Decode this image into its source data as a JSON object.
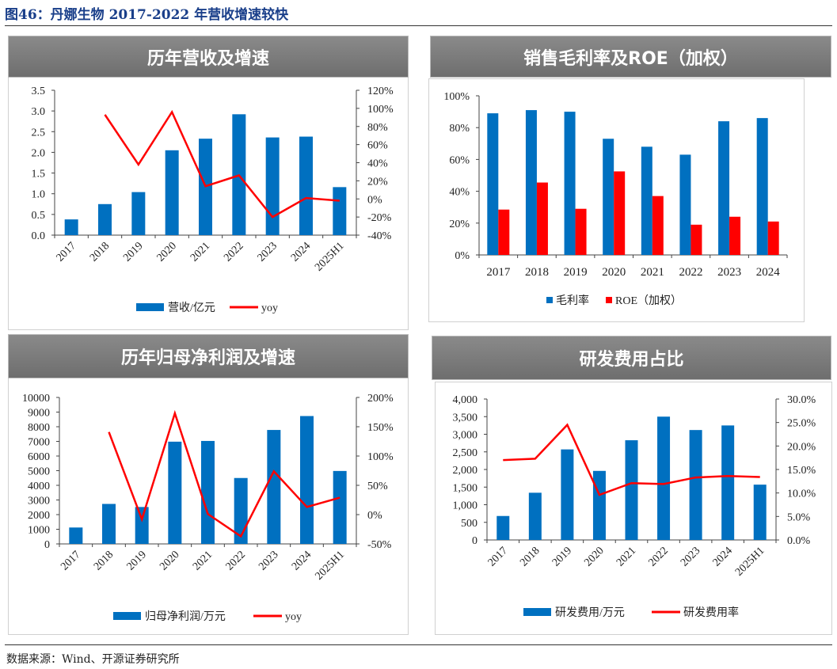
{
  "figure_title": "图46：丹娜生物 2017-2022 年营收增速较快",
  "source": "数据来源：Wind、开源证券研究所",
  "colors": {
    "bar": "#0070c0",
    "line": "#ff0000",
    "header": "#7f7f7f"
  },
  "panels": [
    {
      "title": "历年营收及增速"
    },
    {
      "title": "销售毛利率及ROE（加权）"
    },
    {
      "title": "历年归母净利润及增速"
    },
    {
      "title": "研发费用占比"
    }
  ],
  "chart_data": [
    {
      "type": "bar+line",
      "categories": [
        "2017",
        "2018",
        "2019",
        "2020",
        "2021",
        "2022",
        "2023",
        "2024",
        "2025H1"
      ],
      "series": [
        {
          "name": "营收/亿元",
          "type": "bar",
          "axis": "left",
          "values": [
            0.38,
            0.75,
            1.04,
            2.05,
            2.33,
            2.92,
            2.36,
            2.38,
            1.16
          ]
        },
        {
          "name": "yoy",
          "type": "line",
          "axis": "right",
          "values": [
            null,
            93,
            38,
            96,
            14,
            26,
            -20,
            1,
            -2
          ]
        }
      ],
      "ylim": [
        0,
        3.5
      ],
      "yticks": [
        "0.0",
        "0.5",
        "1.0",
        "1.5",
        "2.0",
        "2.5",
        "3.0",
        "3.5"
      ],
      "y2lim": [
        -40,
        120
      ],
      "y2ticks": [
        "-40%",
        "-20%",
        "0%",
        "20%",
        "40%",
        "60%",
        "80%",
        "100%",
        "120%"
      ],
      "legend": "bottom"
    },
    {
      "type": "bar",
      "categories": [
        "2017",
        "2018",
        "2019",
        "2020",
        "2021",
        "2022",
        "2023",
        "2024"
      ],
      "series": [
        {
          "name": "毛利率",
          "type": "bar",
          "values": [
            89,
            91,
            90,
            73,
            68,
            63,
            84,
            86
          ]
        },
        {
          "name": "ROE（加权）",
          "type": "bar",
          "values": [
            28.5,
            45.5,
            29,
            52.5,
            37,
            19,
            24,
            21
          ]
        }
      ],
      "ylim": [
        0,
        100
      ],
      "yticks": [
        "0%",
        "20%",
        "40%",
        "60%",
        "80%",
        "100%"
      ],
      "legend": "bottom"
    },
    {
      "type": "bar+line",
      "categories": [
        "2017",
        "2018",
        "2019",
        "2020",
        "2021",
        "2022",
        "2023",
        "2024",
        "2025H1"
      ],
      "series": [
        {
          "name": "归母净利润/万元",
          "type": "bar",
          "axis": "left",
          "values": [
            1120,
            2730,
            2520,
            6980,
            7030,
            4500,
            7780,
            8730,
            4980
          ]
        },
        {
          "name": "yoy",
          "type": "line",
          "axis": "right",
          "values": [
            null,
            141,
            -8,
            173,
            1,
            -37,
            74,
            13,
            29
          ]
        }
      ],
      "ylim": [
        0,
        10000
      ],
      "yticks": [
        "0",
        "1000",
        "2000",
        "3000",
        "4000",
        "5000",
        "6000",
        "7000",
        "8000",
        "9000",
        "10000"
      ],
      "y2lim": [
        -50,
        200
      ],
      "y2ticks": [
        "-50%",
        "0%",
        "50%",
        "100%",
        "150%",
        "200%"
      ],
      "legend": "bottom"
    },
    {
      "type": "bar+line",
      "categories": [
        "2017",
        "2018",
        "2019",
        "2020",
        "2021",
        "2022",
        "2023",
        "2024",
        "2025H1"
      ],
      "series": [
        {
          "name": "研发费用/万元",
          "type": "bar",
          "axis": "left",
          "values": [
            680,
            1340,
            2570,
            1960,
            2830,
            3500,
            3120,
            3250,
            1570
          ]
        },
        {
          "name": "研发费用率",
          "type": "line",
          "axis": "right",
          "values": [
            17.0,
            17.3,
            24.5,
            9.6,
            12.1,
            11.9,
            13.3,
            13.6,
            13.4
          ]
        }
      ],
      "ylim": [
        0,
        4000
      ],
      "yticks": [
        "0",
        "500",
        "1,000",
        "1,500",
        "2,000",
        "2,500",
        "3,000",
        "3,500",
        "4,000"
      ],
      "y2lim": [
        0,
        30
      ],
      "y2ticks": [
        "0.0%",
        "5.0%",
        "10.0%",
        "15.0%",
        "20.0%",
        "25.0%",
        "30.0%"
      ],
      "legend": "bottom"
    }
  ]
}
